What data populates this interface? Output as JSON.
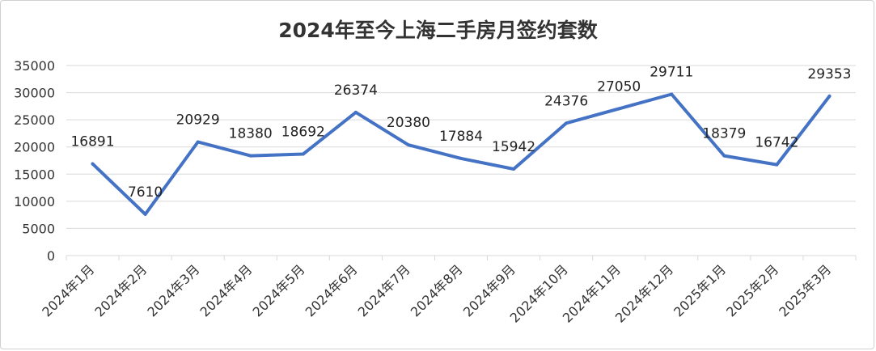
{
  "chart_data": {
    "type": "line",
    "title": "2024年至今上海二手房月签约套数",
    "xlabel": "",
    "ylabel": "",
    "categories": [
      "2024年1月",
      "2024年2月",
      "2024年3月",
      "2024年4月",
      "2024年5月",
      "2024年6月",
      "2024年7月",
      "2024年8月",
      "2024年9月",
      "2024年10月",
      "2024年11月",
      "2024年12月",
      "2025年1月",
      "2025年2月",
      "2025年3月"
    ],
    "series": [
      {
        "values": [
          16891,
          7610,
          20929,
          18380,
          18692,
          26374,
          20380,
          17884,
          15942,
          24376,
          27050,
          29711,
          18379,
          16742,
          29353
        ]
      }
    ],
    "ylim": [
      0,
      35000
    ],
    "yticks": [
      0,
      5000,
      10000,
      15000,
      20000,
      25000,
      30000,
      35000
    ],
    "grid": true,
    "legend": "none",
    "colors": {
      "line": "#4472C4",
      "grid": "#d9d9d9",
      "text": "#333333"
    }
  }
}
